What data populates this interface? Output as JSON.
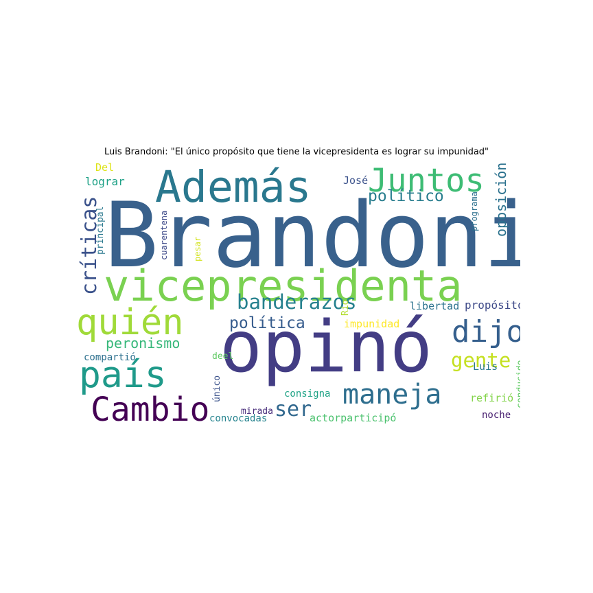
{
  "title": "Luis Brandoni: \"El único propósito que tiene la vicepresidenta es lograr su impunidad\"",
  "words": [
    {
      "text": "Brandoni",
      "color": "#39618c",
      "rotated": false
    },
    {
      "text": "opinó",
      "color": "#433d84",
      "rotated": false
    },
    {
      "text": "vicepresidenta",
      "color": "#7ad151",
      "rotated": false
    },
    {
      "text": "Además",
      "color": "#2a788e",
      "rotated": false
    },
    {
      "text": "quién",
      "color": "#a0da39",
      "rotated": false
    },
    {
      "text": "país",
      "color": "#1f9a8a",
      "rotated": false
    },
    {
      "text": "Juntos",
      "color": "#3dbc74",
      "rotated": false
    },
    {
      "text": "Cambio",
      "color": "#440154",
      "rotated": false
    },
    {
      "text": "maneja",
      "color": "#2e6e8e",
      "rotated": false
    },
    {
      "text": "dijo",
      "color": "#355f8d",
      "rotated": false
    },
    {
      "text": "críticas",
      "color": "#3b528b",
      "rotated": true
    },
    {
      "text": "banderazos",
      "color": "#26818e",
      "rotated": false
    },
    {
      "text": "gente",
      "color": "#c5e021",
      "rotated": false
    },
    {
      "text": "ser",
      "color": "#31688e",
      "rotated": false
    },
    {
      "text": "oposición",
      "color": "#2c728e",
      "rotated": true
    },
    {
      "text": "política",
      "color": "#365c8d",
      "rotated": false
    },
    {
      "text": "político",
      "color": "#287d8e",
      "rotated": false
    },
    {
      "text": "peronismo",
      "color": "#35b779",
      "rotated": false
    },
    {
      "text": "propósito",
      "color": "#3e4a89",
      "rotated": false
    },
    {
      "text": "libertad",
      "color": "#2c728e",
      "rotated": false
    },
    {
      "text": "impunidad",
      "color": "#fde725",
      "rotated": false
    },
    {
      "text": "lograr",
      "color": "#1fa187",
      "rotated": false
    },
    {
      "text": "Del",
      "color": "#dde318",
      "rotated": false
    },
    {
      "text": "José",
      "color": "#3b528b",
      "rotated": false
    },
    {
      "text": "compartió",
      "color": "#2d708e",
      "rotated": false
    },
    {
      "text": "deel",
      "color": "#5ec962",
      "rotated": false
    },
    {
      "text": "Luis",
      "color": "#2a788e",
      "rotated": false
    },
    {
      "text": "refirió",
      "color": "#84d44b",
      "rotated": false
    },
    {
      "text": "consigna",
      "color": "#20a386",
      "rotated": false
    },
    {
      "text": "mirada",
      "color": "#472c7a",
      "rotated": false
    },
    {
      "text": "convocadas",
      "color": "#25838e",
      "rotated": false
    },
    {
      "text": "actorparticipó",
      "color": "#4ac16d",
      "rotated": false
    },
    {
      "text": "noche",
      "color": "#481f70",
      "rotated": false
    },
    {
      "text": "principal",
      "color": "#2a788e",
      "rotated": true
    },
    {
      "text": "cuarentena",
      "color": "#3e4a89",
      "rotated": true
    },
    {
      "text": "pesar",
      "color": "#d2e21b",
      "rotated": true
    },
    {
      "text": "programa",
      "color": "#2d708e",
      "rotated": true
    },
    {
      "text": "Río",
      "color": "#b2dd2d",
      "rotated": true
    },
    {
      "text": "único",
      "color": "#3b528b",
      "rotated": true
    },
    {
      "text": "conducido",
      "color": "#5ec962",
      "rotated": true
    }
  ]
}
